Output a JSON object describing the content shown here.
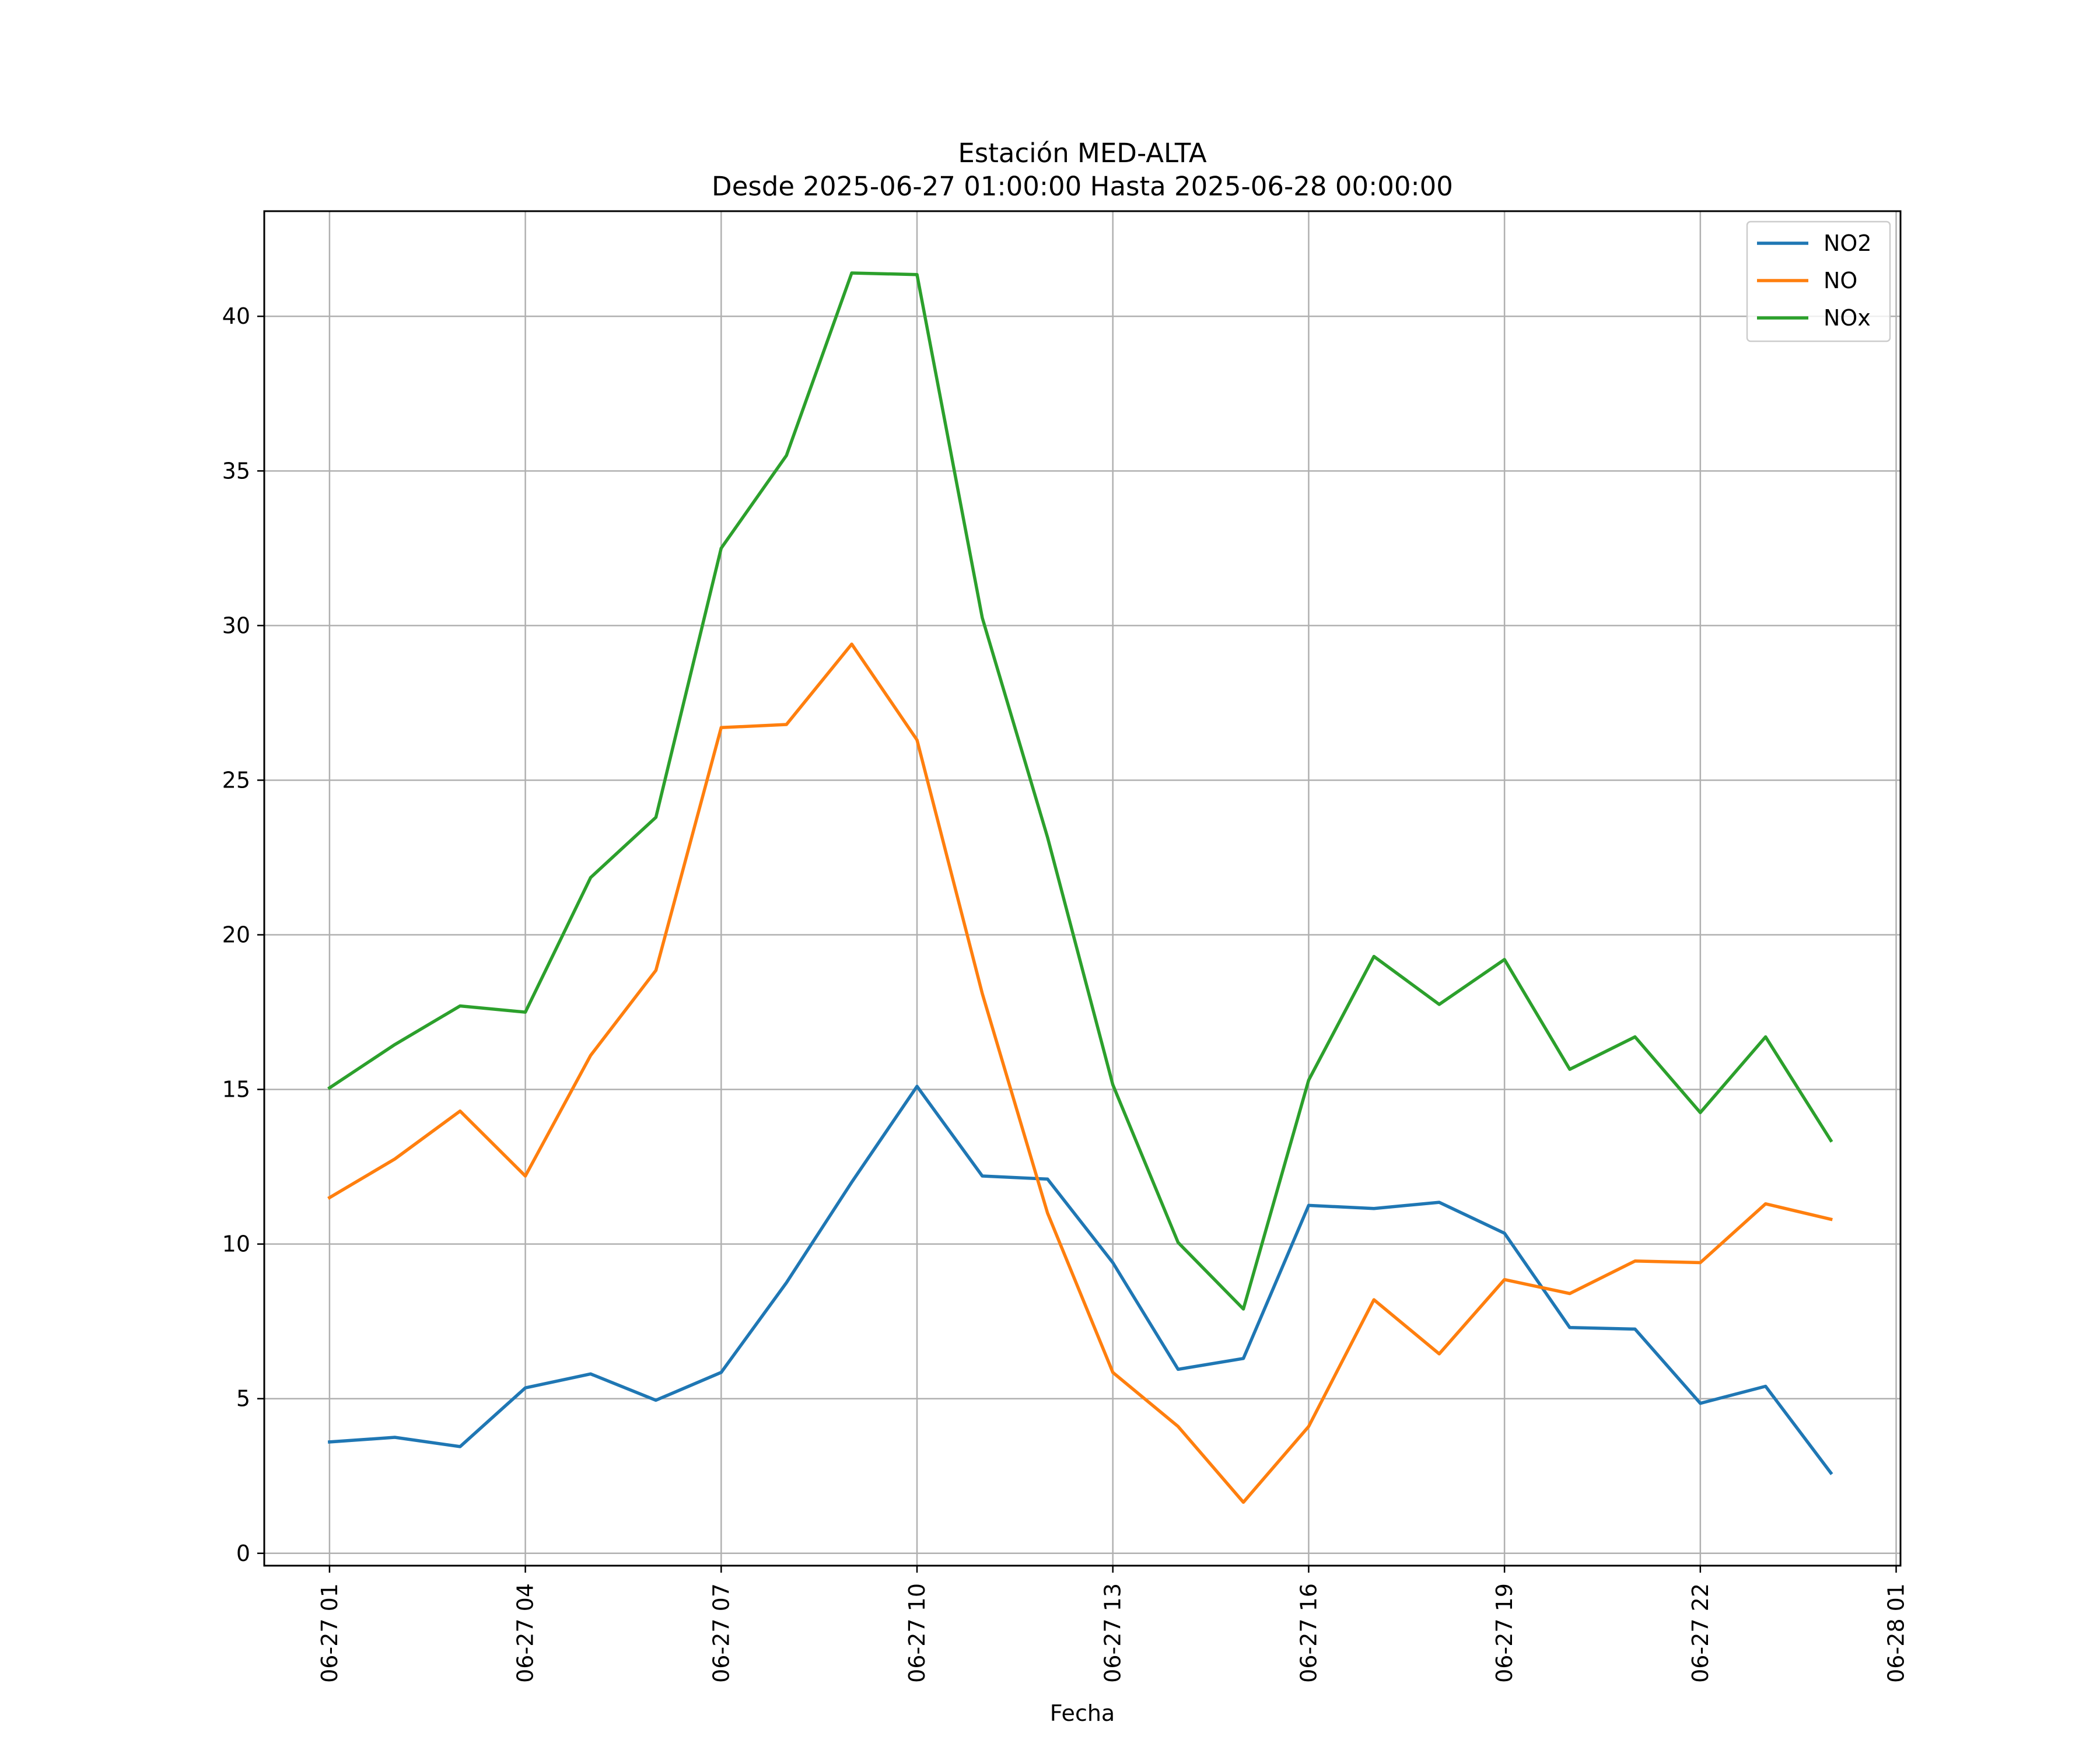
{
  "chart_data": {
    "type": "line",
    "title": "Estación MED-ALTA",
    "subtitle": "Desde 2025-06-27 01:00:00 Hasta 2025-06-28 00:00:00",
    "xlabel": "Fecha",
    "ylabel": "",
    "x": [
      "2025-06-27 01:00",
      "2025-06-27 02:00",
      "2025-06-27 03:00",
      "2025-06-27 04:00",
      "2025-06-27 05:00",
      "2025-06-27 06:00",
      "2025-06-27 07:00",
      "2025-06-27 08:00",
      "2025-06-27 09:00",
      "2025-06-27 10:00",
      "2025-06-27 11:00",
      "2025-06-27 12:00",
      "2025-06-27 13:00",
      "2025-06-27 14:00",
      "2025-06-27 15:00",
      "2025-06-27 16:00",
      "2025-06-27 17:00",
      "2025-06-27 18:00",
      "2025-06-27 19:00",
      "2025-06-27 20:00",
      "2025-06-27 21:00",
      "2025-06-27 22:00",
      "2025-06-27 23:00",
      "2025-06-28 00:00"
    ],
    "xlim": [
      "2025-06-27 00:00",
      "2025-06-28 01:04"
    ],
    "ylim": [
      -0.4,
      43.4
    ],
    "x_ticks": [
      "06-27 01",
      "06-27 04",
      "06-27 07",
      "06-27 10",
      "06-27 13",
      "06-27 16",
      "06-27 19",
      "06-27 22",
      "06-28 01"
    ],
    "x_tick_values": [
      "2025-06-27 01:00",
      "2025-06-27 04:00",
      "2025-06-27 07:00",
      "2025-06-27 10:00",
      "2025-06-27 13:00",
      "2025-06-27 16:00",
      "2025-06-27 19:00",
      "2025-06-27 22:00",
      "2025-06-28 01:00"
    ],
    "y_ticks": [
      0,
      5,
      10,
      15,
      20,
      25,
      30,
      35,
      40
    ],
    "grid": true,
    "legend_position": "top-right",
    "series": [
      {
        "name": "NO2",
        "color": "#1f77b4",
        "values": [
          3.6,
          3.75,
          3.45,
          5.35,
          5.8,
          4.95,
          5.85,
          8.75,
          12.0,
          15.1,
          12.2,
          12.1,
          9.4,
          5.95,
          6.3,
          11.25,
          11.15,
          11.35,
          10.35,
          7.3,
          7.25,
          4.85,
          5.4,
          2.6
        ]
      },
      {
        "name": "NO",
        "color": "#ff7f0e",
        "values": [
          11.5,
          12.75,
          14.3,
          12.2,
          16.1,
          18.85,
          26.7,
          26.8,
          29.4,
          26.3,
          18.1,
          11.0,
          5.85,
          4.1,
          1.65,
          4.1,
          8.2,
          6.45,
          8.85,
          8.4,
          9.45,
          9.4,
          11.3,
          10.8
        ]
      },
      {
        "name": "NOx",
        "color": "#2ca02c",
        "values": [
          15.05,
          16.45,
          17.7,
          17.5,
          21.85,
          23.8,
          32.5,
          35.5,
          41.4,
          41.35,
          30.25,
          23.15,
          15.15,
          10.05,
          7.9,
          15.3,
          19.3,
          17.75,
          19.2,
          15.65,
          16.7,
          14.25,
          16.7,
          13.35
        ]
      }
    ]
  }
}
